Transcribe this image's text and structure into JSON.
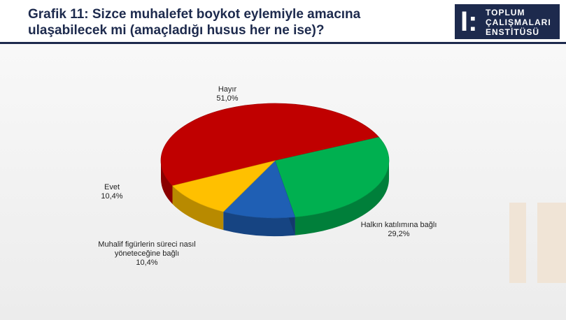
{
  "header": {
    "title": "Grafik 11: Sizce muhalefet boykot eylemiyle amacına ulaşabilecek mi (amaçladığı husus her ne ise)?",
    "logo": [
      "TOPLUM",
      "ÇALIŞMALARI",
      "ENSTİTÜSÜ"
    ]
  },
  "chart_data": {
    "type": "pie",
    "categories": [
      "Hayır",
      "Halkın katılımına bağlı",
      "Muhalif figürlerin süreci nasıl yöneteceğine bağlı",
      "Evet"
    ],
    "values": [
      51.0,
      29.2,
      10.4,
      10.4
    ],
    "value_labels": [
      "51,0%",
      "29,2%",
      "10,4%",
      "10,4%"
    ],
    "colors": [
      "#c00000",
      "#00b050",
      "#1f5fb4",
      "#ffc000"
    ]
  }
}
